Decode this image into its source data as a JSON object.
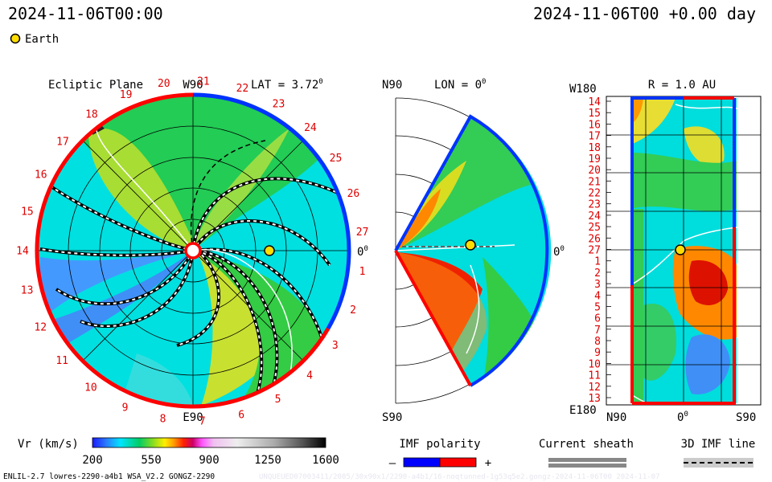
{
  "header": {
    "left_time": "2024-11-06T00:00",
    "right_time": "2024-11-06T00 +0.00 day",
    "legend_label": "Earth",
    "earth_color": "#ffdd00"
  },
  "chart_data": [
    {
      "type": "heatmap",
      "panel": "ecliptic-plane",
      "title": "Ecliptic Plane",
      "lat_label": "LAT = 3.72",
      "lat_degree_symbol": "0",
      "top_label": "W90",
      "bottom_label": "E90",
      "right_label": "0",
      "right_label_sup": "0",
      "rotation_ticks": [
        "1",
        "2",
        "3",
        "4",
        "5",
        "6",
        "7",
        "8",
        "9",
        "10",
        "11",
        "12",
        "13",
        "14",
        "15",
        "16",
        "17",
        "18",
        "19",
        "20",
        "21",
        "22",
        "23",
        "24",
        "25",
        "26",
        "27"
      ],
      "tick_color": "#dd0000",
      "earth_position": {
        "r_au": 1.0,
        "lon_deg": 0
      }
    },
    {
      "type": "heatmap",
      "panel": "meridional-plane",
      "lon_label": "LON = 0",
      "lon_degree_symbol": "0",
      "top_label": "N90",
      "bottom_label": "S90",
      "right_label": "0",
      "right_label_sup": "0"
    },
    {
      "type": "heatmap",
      "panel": "r-equals-1au",
      "title": "R = 1.0 AU",
      "top_left_label": "W180",
      "bottom_left_label": "E180",
      "x_ticks": [
        "N90",
        "0",
        "S90"
      ],
      "x_tick_sup": "0",
      "y_ticks": [
        "14",
        "15",
        "16",
        "17",
        "18",
        "19",
        "20",
        "21",
        "22",
        "23",
        "24",
        "25",
        "26",
        "27",
        "1",
        "2",
        "3",
        "4",
        "5",
        "6",
        "7",
        "8",
        "9",
        "10",
        "11",
        "12",
        "13"
      ]
    }
  ],
  "colorbar": {
    "label": "Vr (km/s)",
    "ticks": [
      "200",
      "550",
      "900",
      "1250",
      "1600"
    ],
    "range": [
      200,
      1600
    ]
  },
  "imf_legend": {
    "title": "IMF polarity",
    "minus": "–",
    "plus": "+",
    "neg_color": "#0000ff",
    "pos_color": "#ff0000"
  },
  "sheath_legend": {
    "title": "Current sheath"
  },
  "imf3d_legend": {
    "title": "3D IMF line"
  },
  "footer": {
    "left": "ENLIL-2.7 lowres-2290-a4b1 WSA_V2.2 GONGZ-2290",
    "right": "UNQUEUED07003411/2085/30x90x1/2290-a4b1/16-noqtunned-1g53q5e2.gongz-2024-11-06T00 2024-11-07"
  }
}
